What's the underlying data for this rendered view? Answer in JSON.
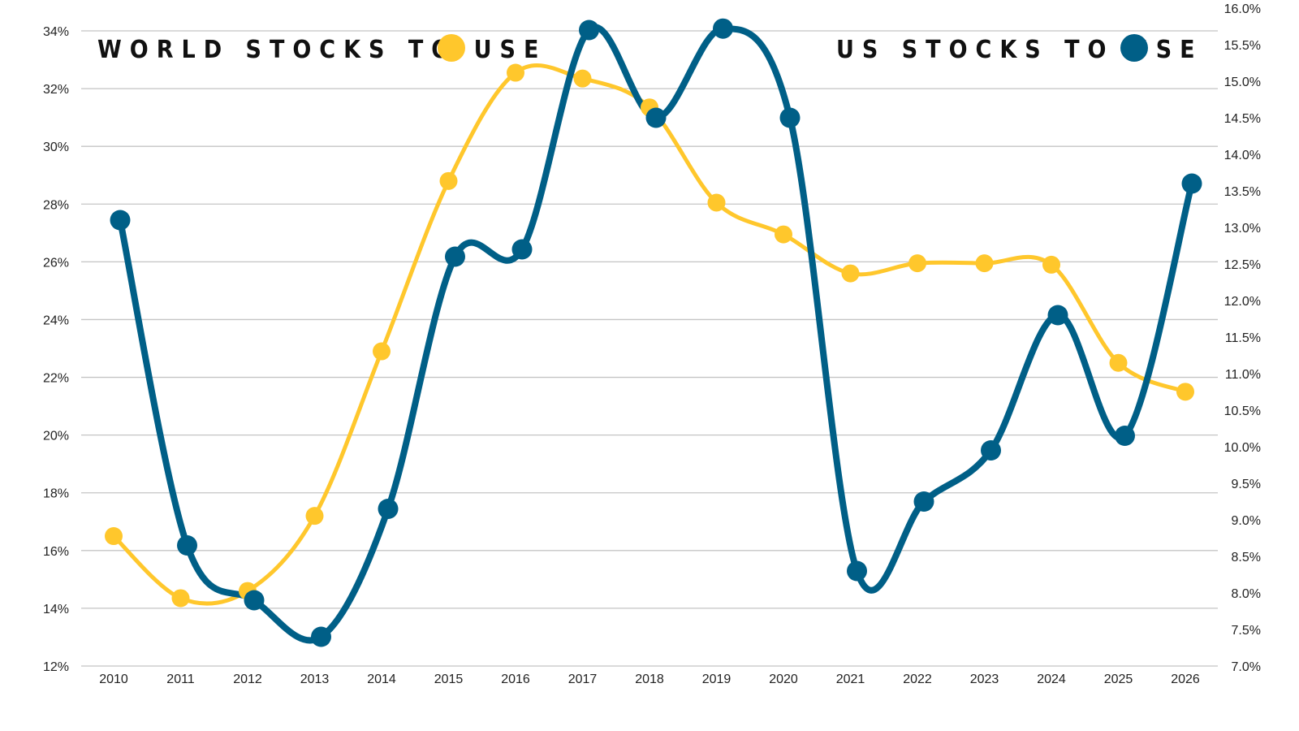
{
  "chart_data": {
    "type": "line",
    "x": [
      "2010",
      "2011",
      "2012",
      "2013",
      "2014",
      "2015",
      "2016",
      "2017",
      "2018",
      "2019",
      "2020",
      "2021",
      "2022",
      "2023",
      "2024",
      "2025",
      "2026"
    ],
    "series": [
      {
        "name": "WORLD STOCKS TO USE",
        "axis": "left",
        "color": "#FFC72C",
        "values": [
          16.5,
          14.35,
          14.6,
          17.2,
          22.9,
          28.8,
          32.55,
          32.35,
          31.35,
          28.05,
          26.95,
          25.6,
          25.95,
          25.95,
          25.9,
          22.5,
          21.5
        ]
      },
      {
        "name": "US STOCKS TO USE",
        "axis": "right",
        "color": "#005F87",
        "values": [
          13.1,
          8.65,
          7.9,
          7.4,
          9.15,
          12.6,
          12.7,
          15.7,
          14.5,
          15.72,
          14.5,
          8.3,
          9.25,
          9.95,
          11.8,
          10.15,
          13.6
        ]
      }
    ],
    "left_axis": {
      "ylim": [
        12,
        34
      ],
      "ticks": [
        "12%",
        "14%",
        "16%",
        "18%",
        "20%",
        "22%",
        "24%",
        "26%",
        "28%",
        "30%",
        "32%",
        "34%"
      ]
    },
    "right_axis": {
      "ylim": [
        7.0,
        16.0
      ],
      "ticks": [
        "7.0%",
        "7.5%",
        "8.0%",
        "8.5%",
        "9.0%",
        "9.5%",
        "10.0%",
        "10.5%",
        "11.0%",
        "11.5%",
        "12.0%",
        "12.5%",
        "13.0%",
        "13.5%",
        "14.0%",
        "14.5%",
        "15.0%",
        "15.5%",
        "16.0%"
      ]
    },
    "grid": true,
    "legend": "top"
  }
}
